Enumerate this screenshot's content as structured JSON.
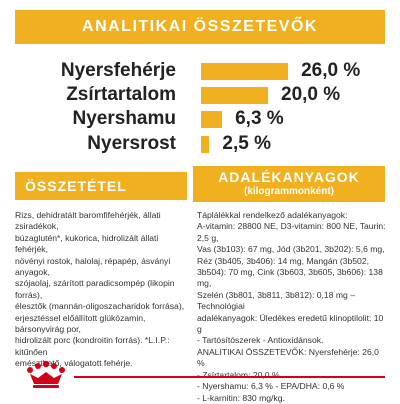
{
  "header": {
    "title": "ANALITIKAI ÖSSZETEVŐK"
  },
  "nutrients": [
    {
      "label": "Nyersfehérje",
      "value_text": "26,0 %",
      "percent": 26.0
    },
    {
      "label": "Zsírtartalom",
      "value_text": "20,0 %",
      "percent": 20.0
    },
    {
      "label": "Nyershamu",
      "value_text": "6,3 %",
      "percent": 6.3
    },
    {
      "label": "Nyersrost",
      "value_text": "2,5 %",
      "percent": 2.5
    }
  ],
  "composition": {
    "title": "ÖSSZETÉTEL",
    "lines": [
      "Rizs, dehidratált baromfifehérjék, állati zsiradékok,",
      "búzaglutén*, kukorica, hidrolizált állati fehérjék,",
      "növényi rostok, halolaj, répapép, ásványi anyagok,",
      "szójaolaj, szárított paradicsompép (likopin forrás),",
      "élesztők (mannán-oligoszacharidok forrása),",
      "erjesztéssel előállított glükózamin, bársonyvirág por,",
      "hidrolizált porc (kondroitin forrás). *L.I.P.: kitűnően",
      "emészthető, válogatott fehérje."
    ]
  },
  "additives": {
    "title": "ADALÉKANYAGOK",
    "subtitle": "(kilogrammonként)",
    "lines": [
      "Táplálékkal rendelkező adalékanyagok:",
      "A-vitamin: 28800 NE, D3-vitamin: 800 NE, Taurin: 2,5 g,",
      "Vas (3b103): 67 mg, Jód (3b201, 3b202): 5,6 mg,",
      "Réz (3b405, 3b406): 14 mg, Mangán (3b502,",
      "3b504): 70 mg, Cink (3b603, 3b605, 3b606): 138 mg,",
      "Szelén (3b801, 3b811, 3b812): 0,18 mg – Technológiai",
      "adalékanyagok: Üledékes eredetű klinoptilolit: 10 g",
      "- Tartósítószerek - Antioxidánsok.",
      "ANALITIKAI ÖSSZETEVŐK: Nyersfehérje: 26,0 %",
      "- Zsírtartalom: 20,0 %",
      "- Nyershamu: 6,3 % - EPA/DHA: 0,6 %",
      "- L-karnitin: 830 mg/kg."
    ]
  },
  "colors": {
    "accent": "#f0b01f",
    "brand_red": "#d0021b",
    "text": "#222222"
  },
  "logo": {
    "icon": "royal-canin-crown-icon"
  }
}
